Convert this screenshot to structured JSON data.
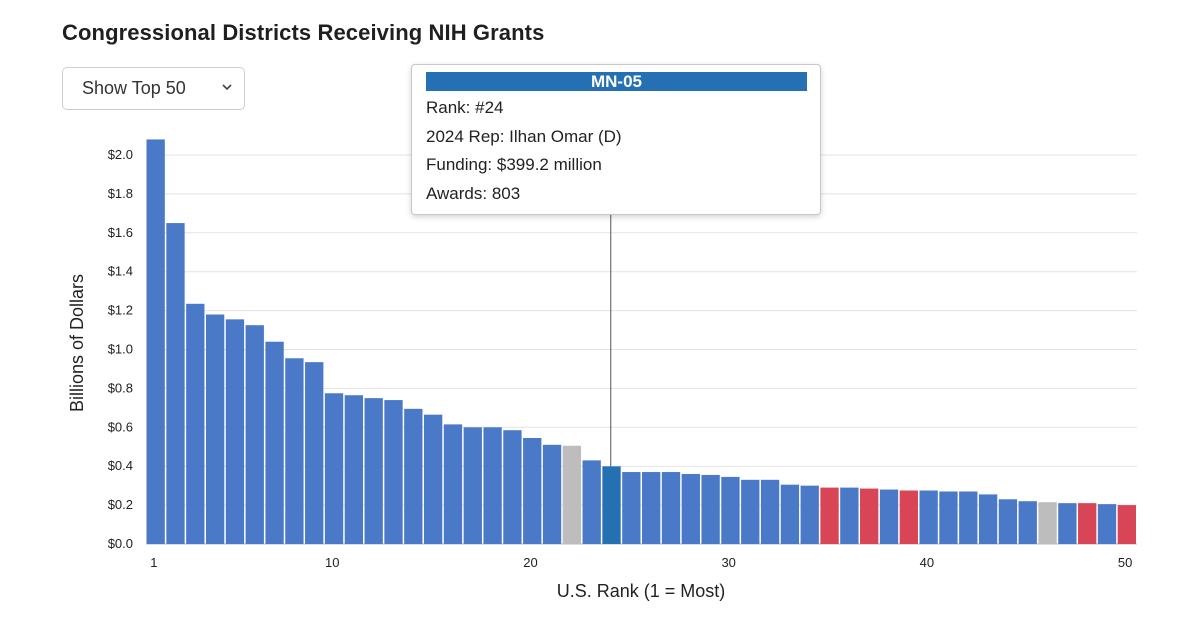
{
  "title": "Congressional Districts Receiving NIH Grants",
  "dropdown": {
    "selected": "Show Top 50"
  },
  "tooltip": {
    "district": "MN-05",
    "rank": "Rank: #24",
    "rep": "2024 Rep: Ilhan Omar (D)",
    "funding": "Funding: $399.2 million",
    "awards": "Awards: 803"
  },
  "colors": {
    "democrat": "#4a7ac7",
    "republican": "#d84557",
    "vacant": "#bdbdbd",
    "highlight": "#2470b3",
    "grid": "#e3e3e3"
  },
  "chart_data": {
    "type": "bar",
    "xlabel": "U.S. Rank (1 = Most)",
    "ylabel": "Billions of Dollars",
    "ylim": [
      0,
      2.0
    ],
    "yticks": [
      0,
      0.2,
      0.4,
      0.6,
      0.8,
      1.0,
      1.2,
      1.4,
      1.6,
      1.8,
      2.0
    ],
    "ytick_labels": [
      "$0.0",
      "$0.2",
      "$0.4",
      "$0.6",
      "$0.8",
      "$1.0",
      "$1.2",
      "$1.4",
      "$1.6",
      "$1.8",
      "$2.0"
    ],
    "xticks": [
      1,
      10,
      20,
      30,
      40,
      50
    ],
    "x": [
      1,
      2,
      3,
      4,
      5,
      6,
      7,
      8,
      9,
      10,
      11,
      12,
      13,
      14,
      15,
      16,
      17,
      18,
      19,
      20,
      21,
      22,
      23,
      24,
      25,
      26,
      27,
      28,
      29,
      30,
      31,
      32,
      33,
      34,
      35,
      36,
      37,
      38,
      39,
      40,
      41,
      42,
      43,
      44,
      45,
      46,
      47,
      48,
      49,
      50
    ],
    "values": [
      2.08,
      1.65,
      1.235,
      1.18,
      1.155,
      1.125,
      1.04,
      0.955,
      0.935,
      0.775,
      0.765,
      0.75,
      0.74,
      0.695,
      0.665,
      0.615,
      0.6,
      0.6,
      0.585,
      0.545,
      0.51,
      0.505,
      0.43,
      0.3992,
      0.37,
      0.37,
      0.37,
      0.36,
      0.355,
      0.345,
      0.33,
      0.33,
      0.305,
      0.3,
      0.29,
      0.29,
      0.285,
      0.28,
      0.275,
      0.275,
      0.27,
      0.27,
      0.255,
      0.23,
      0.22,
      0.215,
      0.21,
      0.21,
      0.205,
      0.2
    ],
    "party": [
      "D",
      "D",
      "D",
      "D",
      "D",
      "D",
      "D",
      "D",
      "D",
      "D",
      "D",
      "D",
      "D",
      "D",
      "D",
      "D",
      "D",
      "D",
      "D",
      "D",
      "D",
      "V",
      "D",
      "D",
      "D",
      "D",
      "D",
      "D",
      "D",
      "D",
      "D",
      "D",
      "D",
      "D",
      "R",
      "D",
      "R",
      "D",
      "R",
      "D",
      "D",
      "D",
      "D",
      "D",
      "D",
      "V",
      "D",
      "R",
      "D",
      "R"
    ],
    "highlighted_rank": 24
  }
}
